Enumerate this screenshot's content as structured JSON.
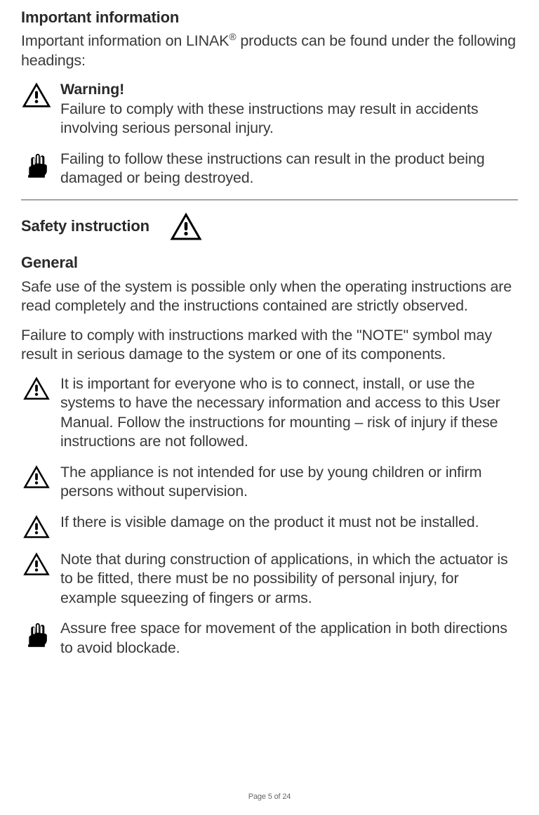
{
  "heading1": "Important information",
  "intro": "Important information on LINAK® products can be found under the following headings:",
  "warning_item": {
    "label": "Warning!",
    "text": "Failure to comply with these instructions may result in accidents involving serious personal injury."
  },
  "note_item": {
    "text": "Failing to follow these instructions can result in the product being damaged or being destroyed."
  },
  "heading2": "Safety instruction",
  "sub_heading": "General",
  "para1": "Safe use of the system is possible only when the operating instructions are read completely and the instructions contained are strictly observed.",
  "para2": "Failure to comply with instructions marked with the \"NOTE\" symbol may result in serious damage to the system or one of its components.",
  "bullets": [
    {
      "icon": "warning",
      "text": "It is important for everyone who is to connect, install, or use the systems to have the necessary information and access to this User Manual. Follow the instructions for mounting – risk of injury if these instructions are not followed."
    },
    {
      "icon": "warning",
      "text": "The appliance is not intended for use by young children or infirm persons without supervision."
    },
    {
      "icon": "warning",
      "text": "If there is visible damage on the product it must not be installed."
    },
    {
      "icon": "warning",
      "text": "Note that during construction of applications, in which the actuator is to be fitted, there must be no possibility of personal injury, for example squeezing of fingers or arms."
    },
    {
      "icon": "hand",
      "text": "Assure free space for movement of the application in both directions to avoid blockade."
    }
  ],
  "footer": "Page 5 of 24",
  "icon_size": 40,
  "icon_size_inline": 42
}
